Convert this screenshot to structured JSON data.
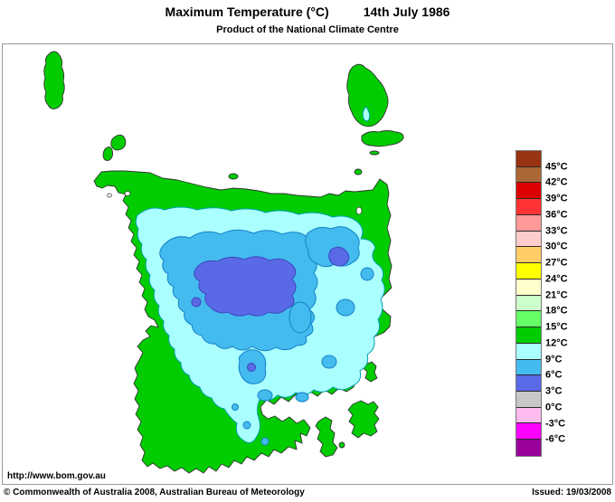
{
  "header": {
    "title": "Maximum Temperature (°C)",
    "date": "14th July 1986",
    "subtitle": "Product of the National Climate Centre"
  },
  "legend": {
    "bands": [
      {
        "color": "#993311",
        "label": "45°C"
      },
      {
        "color": "#AA6633",
        "label": "42°C"
      },
      {
        "color": "#DD0000",
        "label": "39°C"
      },
      {
        "color": "#FF3333",
        "label": "36°C"
      },
      {
        "color": "#FF9999",
        "label": "33°C"
      },
      {
        "color": "#FFCCCC",
        "label": "30°C"
      },
      {
        "color": "#FFCC66",
        "label": "27°C"
      },
      {
        "color": "#FFFF00",
        "label": "24°C"
      },
      {
        "color": "#FFFFCC",
        "label": "21°C"
      },
      {
        "color": "#CCFFCC",
        "label": "18°C"
      },
      {
        "color": "#66FF66",
        "label": "15°C"
      },
      {
        "color": "#00CC00",
        "label": "12°C"
      },
      {
        "color": "#AAFFFF",
        "label": "9°C"
      },
      {
        "color": "#44BBEE",
        "label": "6°C"
      },
      {
        "color": "#5A6AE6",
        "label": "3°C"
      },
      {
        "color": "#C8C8C8",
        "label": "0°C"
      },
      {
        "color": "#FFBBEE",
        "label": "-3°C"
      },
      {
        "color": "#FF00FF",
        "label": "-6°C"
      },
      {
        "color": "#990099",
        "label": ""
      }
    ]
  },
  "footer": {
    "url": "http://www.bom.gov.au",
    "copyright": "© Commonwealth of Australia 2008, Australian Bureau of Meteorology",
    "issued": "Issued: 19/03/2008"
  }
}
